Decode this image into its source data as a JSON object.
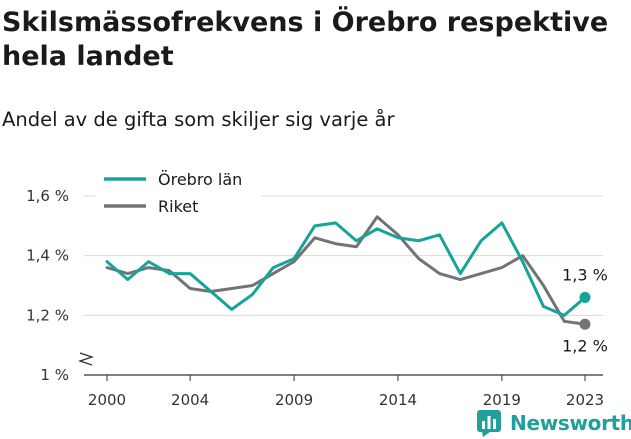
{
  "title": "Skilsmässofrekvens i Örebro respektive hela landet",
  "subtitle": "Andel av de gifta som skiljer sig varje år",
  "brand": {
    "name": "Newsworthy",
    "icon": "newsworthy-logo-icon"
  },
  "colors": {
    "orebro": "#16a39a",
    "riket": "#737373",
    "grid": "#d9d9d9",
    "axis": "#333333",
    "brand": "#1fa09c"
  },
  "chart_data": {
    "type": "line",
    "x": [
      2000,
      2001,
      2002,
      2003,
      2004,
      2005,
      2006,
      2007,
      2008,
      2009,
      2010,
      2011,
      2012,
      2013,
      2014,
      2015,
      2016,
      2017,
      2018,
      2019,
      2020,
      2021,
      2022,
      2023
    ],
    "series": [
      {
        "name": "Örebro län",
        "values": [
          1.38,
          1.32,
          1.38,
          1.34,
          1.34,
          1.28,
          1.22,
          1.27,
          1.36,
          1.39,
          1.5,
          1.51,
          1.45,
          1.49,
          1.46,
          1.45,
          1.47,
          1.34,
          1.45,
          1.51,
          1.38,
          1.23,
          1.2,
          1.26
        ],
        "end_label": "1,3 %"
      },
      {
        "name": "Riket",
        "values": [
          1.36,
          1.34,
          1.36,
          1.35,
          1.29,
          1.28,
          1.29,
          1.3,
          1.34,
          1.38,
          1.46,
          1.44,
          1.43,
          1.53,
          1.47,
          1.39,
          1.34,
          1.32,
          1.34,
          1.36,
          1.4,
          1.3,
          1.18,
          1.17
        ],
        "end_label": "1,2 %"
      }
    ],
    "x_ticks": [
      "2000",
      "2004",
      "2009",
      "2014",
      "2019",
      "2023"
    ],
    "y_ticks": [
      "1 %",
      "1,2 %",
      "1,4 %",
      "1,6 %"
    ],
    "ylim": [
      1.0,
      1.6
    ],
    "axis_break": true,
    "grid": "horizontal",
    "legend": "top-left"
  }
}
